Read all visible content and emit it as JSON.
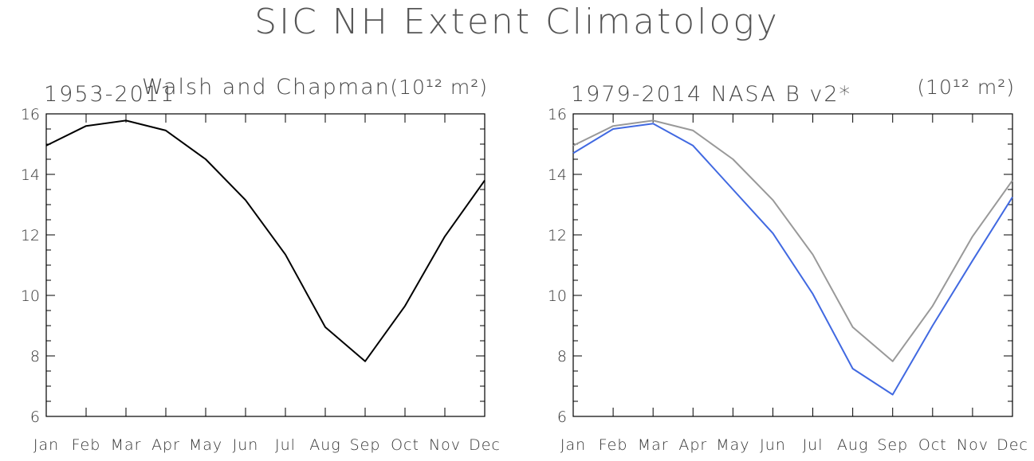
{
  "title": "SIC NH Extent Climatology",
  "chart_data": [
    {
      "type": "line",
      "title_left": "1953-2011",
      "title_center": "Walsh and Chapman",
      "unit_label": "(10¹² m²)",
      "categories": [
        "Jan",
        "Feb",
        "Mar",
        "Apr",
        "May",
        "Jun",
        "Jul",
        "Aug",
        "Sep",
        "Oct",
        "Nov",
        "Dec"
      ],
      "ylim": [
        6,
        16
      ],
      "yticks": [
        6,
        8,
        10,
        12,
        14,
        16
      ],
      "series": [
        {
          "color": "#000000",
          "values": [
            14.95,
            15.6,
            15.78,
            15.45,
            14.5,
            13.15,
            11.35,
            8.95,
            7.82,
            9.65,
            11.95,
            13.8
          ]
        }
      ]
    },
    {
      "type": "line",
      "title_left": "1979-2014 NASA B v2*",
      "title_center": "",
      "unit_label": "(10¹² m²)",
      "categories": [
        "Jan",
        "Feb",
        "Mar",
        "Apr",
        "May",
        "Jun",
        "Jul",
        "Aug",
        "Sep",
        "Oct",
        "Nov",
        "Dec"
      ],
      "ylim": [
        6,
        16
      ],
      "yticks": [
        6,
        8,
        10,
        12,
        14,
        16
      ],
      "series": [
        {
          "color": "#999999",
          "values": [
            14.95,
            15.6,
            15.78,
            15.45,
            14.5,
            13.15,
            11.35,
            8.95,
            7.82,
            9.65,
            11.95,
            13.8
          ]
        },
        {
          "color": "#4169e1",
          "values": [
            14.7,
            15.5,
            15.68,
            14.95,
            13.5,
            12.05,
            10.05,
            7.58,
            6.72,
            9.0,
            11.15,
            13.25
          ]
        }
      ]
    }
  ]
}
